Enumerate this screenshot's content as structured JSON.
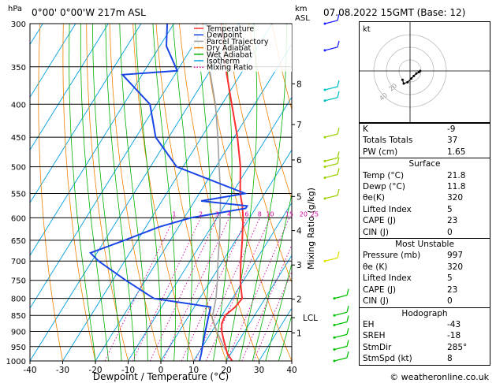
{
  "header": {
    "location": "0°00' 0°00'W 217m ASL",
    "datetime": "07.08.2022 15GMT (Base: 12)",
    "hpa_unit": "hPa",
    "km_unit": "km",
    "asl_label": "ASL"
  },
  "footer": {
    "copyright": "© weatheronline.co.uk"
  },
  "chart_data": [
    {
      "type": "line",
      "subtype": "skew-T log-P diagram",
      "xlabel": "Dewpoint / Temperature (°C)",
      "ylabel": "hPa",
      "right_label": "Mixing Ratio (g/kg)",
      "xlim": [
        -40,
        40
      ],
      "ylim": [
        1000,
        300
      ],
      "x_ticks": [
        -40,
        -30,
        -20,
        -10,
        0,
        10,
        20,
        30,
        40
      ],
      "pressure_ticks": [
        300,
        350,
        400,
        450,
        500,
        550,
        600,
        650,
        700,
        750,
        800,
        850,
        900,
        950,
        1000
      ],
      "km_ticks": [
        {
          "label": "8",
          "p": 372
        },
        {
          "label": "7",
          "p": 430
        },
        {
          "label": "6",
          "p": 488
        },
        {
          "label": "5",
          "p": 556
        },
        {
          "label": "4",
          "p": 628
        },
        {
          "label": "3",
          "p": 710
        },
        {
          "label": "2",
          "p": 802
        },
        {
          "label": "LCL",
          "p": 857
        },
        {
          "label": "1",
          "p": 905
        }
      ],
      "mixing_ratio_labels": [
        "1",
        "2",
        "3",
        "4",
        "6",
        "8",
        "10",
        "15",
        "20",
        "25"
      ],
      "legend": {
        "placement": "top-right",
        "entries": [
          {
            "name": "Temperature",
            "color": "#ff3030",
            "style": "solid"
          },
          {
            "name": "Dewpoint",
            "color": "#1a46e6",
            "style": "solid"
          },
          {
            "name": "Parcel Trajectory",
            "color": "#a0a0a0",
            "style": "solid"
          },
          {
            "name": "Dry Adiabat",
            "color": "#f08000",
            "style": "solid"
          },
          {
            "name": "Wet Adiabat",
            "color": "#00b000",
            "style": "solid"
          },
          {
            "name": "Isotherm",
            "color": "#00a0e0",
            "style": "solid"
          },
          {
            "name": "Mixing Ratio",
            "color": "#d000a0",
            "style": "dotted"
          }
        ]
      },
      "series": [
        {
          "name": "Temperature",
          "points": [
            [
              1000,
              21.8
            ],
            [
              975,
              19
            ],
            [
              950,
              17
            ],
            [
              925,
              15
            ],
            [
              900,
              13
            ],
            [
              875,
              11.5
            ],
            [
              850,
              11
            ],
            [
              825,
              12.5
            ],
            [
              800,
              13
            ],
            [
              775,
              11
            ],
            [
              750,
              9
            ],
            [
              700,
              5.5
            ],
            [
              650,
              2
            ],
            [
              600,
              -2
            ],
            [
              575,
              -4.5
            ],
            [
              550,
              -7.5
            ],
            [
              500,
              -12.5
            ],
            [
              450,
              -19
            ],
            [
              400,
              -27
            ],
            [
              350,
              -36
            ],
            [
              325,
              -40.5
            ],
            [
              300,
              -45.5
            ]
          ]
        },
        {
          "name": "Dewpoint",
          "points": [
            [
              1000,
              11.8
            ],
            [
              975,
              11
            ],
            [
              950,
              10
            ],
            [
              925,
              9
            ],
            [
              900,
              8
            ],
            [
              875,
              7
            ],
            [
              850,
              6
            ],
            [
              825,
              5
            ],
            [
              800,
              -14
            ],
            [
              750,
              -26
            ],
            [
              700,
              -38
            ],
            [
              680,
              -42
            ],
            [
              650,
              -34
            ],
            [
              620,
              -26
            ],
            [
              600,
              -18
            ],
            [
              580,
              -3
            ],
            [
              575,
              -3
            ],
            [
              565,
              -18
            ],
            [
              550,
              -6
            ],
            [
              500,
              -32
            ],
            [
              450,
              -44
            ],
            [
              400,
              -52
            ],
            [
              360,
              -66
            ],
            [
              355,
              -50
            ],
            [
              325,
              -58
            ],
            [
              300,
              -62
            ]
          ]
        },
        {
          "name": "Parcel Trajectory",
          "points": [
            [
              1000,
              21.8
            ],
            [
              950,
              16.5
            ],
            [
              900,
              11.5
            ],
            [
              857,
              7.5
            ],
            [
              800,
              5
            ],
            [
              750,
              2
            ],
            [
              700,
              -1.5
            ],
            [
              650,
              -5
            ],
            [
              600,
              -9
            ],
            [
              550,
              -13.5
            ],
            [
              500,
              -19
            ],
            [
              450,
              -25
            ],
            [
              400,
              -32
            ],
            [
              350,
              -41
            ],
            [
              300,
              -51
            ]
          ]
        }
      ],
      "wind_barbs_colors": [
        "#2020ff",
        "#00c0c0",
        "#9ad000",
        "#e0e000",
        "#00c000"
      ]
    },
    {
      "type": "scatter",
      "subtype": "hodograph",
      "unit_label": "kt",
      "ring_labels": [
        "40",
        "20"
      ],
      "points": [
        [
          -6,
          -7
        ],
        [
          -5,
          -10
        ],
        [
          -2,
          -9
        ],
        [
          1,
          -6
        ],
        [
          3,
          -4
        ],
        [
          5,
          -2
        ],
        [
          7,
          -1
        ],
        [
          8,
          0
        ]
      ]
    }
  ],
  "stats": {
    "rows": [
      {
        "label": "K",
        "value": "-9"
      },
      {
        "label": "Totals Totals",
        "value": "37"
      },
      {
        "label": "PW (cm)",
        "value": "1.65"
      }
    ]
  },
  "surface": {
    "title": "Surface",
    "rows": [
      {
        "label": "Temp (°C)",
        "value": "21.8"
      },
      {
        "label": "Dewp (°C)",
        "value": "11.8"
      },
      {
        "label": "θe(K)",
        "value": "320"
      },
      {
        "label": "Lifted Index",
        "value": "5"
      },
      {
        "label": "CAPE (J)",
        "value": "23"
      },
      {
        "label": "CIN (J)",
        "value": "0"
      }
    ]
  },
  "most_unstable": {
    "title": "Most Unstable",
    "rows": [
      {
        "label": "Pressure (mb)",
        "value": "997"
      },
      {
        "label": "θe (K)",
        "value": "320"
      },
      {
        "label": "Lifted Index",
        "value": "5"
      },
      {
        "label": "CAPE (J)",
        "value": "23"
      },
      {
        "label": "CIN (J)",
        "value": "0"
      }
    ]
  },
  "hodograph_table": {
    "title": "Hodograph",
    "rows": [
      {
        "label": "EH",
        "value": "-43"
      },
      {
        "label": "SREH",
        "value": "-18"
      },
      {
        "label": "StmDir",
        "value": "285°"
      },
      {
        "label": "StmSpd (kt)",
        "value": "8"
      }
    ]
  }
}
